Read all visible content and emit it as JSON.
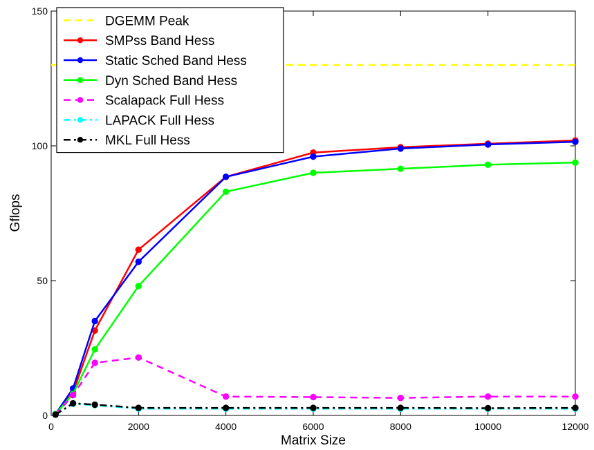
{
  "chart_data": {
    "type": "line",
    "xlabel": "Matrix Size",
    "ylabel": "Gflops",
    "xlim": [
      0,
      12000
    ],
    "ylim": [
      0,
      150
    ],
    "x_ticks": [
      0,
      2000,
      4000,
      6000,
      8000,
      10000,
      12000
    ],
    "y_ticks": [
      0,
      50,
      100,
      150
    ],
    "legend_position": "top-left",
    "grid": false,
    "series": [
      {
        "name": "DGEMM Peak",
        "color": "#ffff00",
        "dash": "dashed",
        "marker": false,
        "x": [
          0,
          12000
        ],
        "y": [
          130,
          130
        ]
      },
      {
        "name": "SMPss Band Hess",
        "color": "#ff0000",
        "dash": "solid",
        "marker": true,
        "x": [
          100,
          500,
          1000,
          2000,
          4000,
          6000,
          8000,
          10000,
          12000
        ],
        "y": [
          0.5,
          8.5,
          31.5,
          61.5,
          88.5,
          97.5,
          99.5,
          100.8,
          102
        ]
      },
      {
        "name": "Static Sched Band Hess",
        "color": "#0000ff",
        "dash": "solid",
        "marker": true,
        "x": [
          100,
          500,
          1000,
          2000,
          4000,
          6000,
          8000,
          10000,
          12000
        ],
        "y": [
          0.5,
          10,
          35,
          57,
          88.5,
          96,
          99,
          100.5,
          101.5
        ]
      },
      {
        "name": "Dyn Sched Band Hess",
        "color": "#00ff00",
        "dash": "solid",
        "marker": true,
        "x": [
          100,
          500,
          1000,
          2000,
          4000,
          6000,
          8000,
          10000,
          12000
        ],
        "y": [
          0.5,
          8,
          24.5,
          48,
          83,
          90,
          91.5,
          93,
          93.8
        ]
      },
      {
        "name": "Scalapack Full Hess",
        "color": "#ff00ff",
        "dash": "dashed",
        "marker": true,
        "x": [
          100,
          500,
          1000,
          2000,
          4000,
          6000,
          8000,
          10000,
          12000
        ],
        "y": [
          0.3,
          7.5,
          19.5,
          21.5,
          7,
          6.8,
          6.5,
          7,
          7
        ]
      },
      {
        "name": "LAPACK Full Hess",
        "color": "#00ffff",
        "dash": "dashdot",
        "marker": true,
        "x": [
          100,
          500,
          1000,
          2000,
          4000,
          6000,
          8000,
          10000,
          12000
        ],
        "y": [
          0.3,
          4.3,
          3.8,
          2.5,
          2.5,
          2.5,
          2.5,
          2.5,
          2.5
        ]
      },
      {
        "name": "MKL Full Hess",
        "color": "#000000",
        "dash": "dashdot",
        "marker": true,
        "x": [
          100,
          500,
          1000,
          2000,
          4000,
          6000,
          8000,
          10000,
          12000
        ],
        "y": [
          0.3,
          4.5,
          4,
          2.8,
          2.8,
          2.8,
          2.8,
          2.7,
          2.8
        ]
      }
    ]
  }
}
